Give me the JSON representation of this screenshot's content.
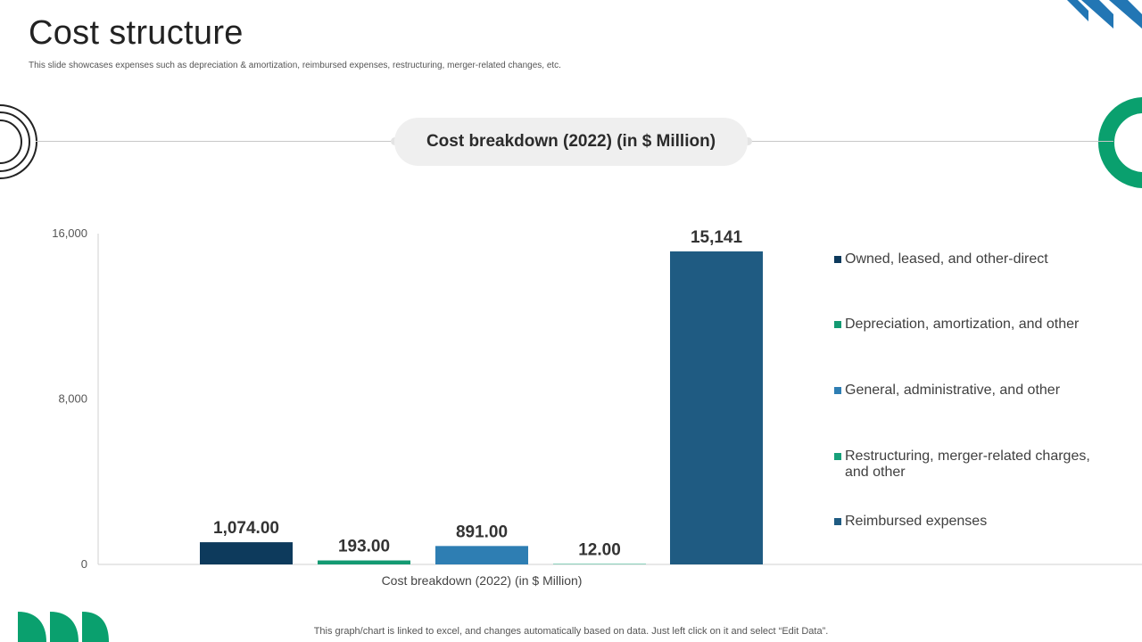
{
  "slide": {
    "title": "Cost structure",
    "subtitle": "This slide showcases expenses such as depreciation & amortization, reimbursed expenses, restructuring, merger-related changes, etc.",
    "header_pill": "Cost breakdown (2022) (in $ Million)",
    "footer_note": "This graph/chart is linked to excel,  and changes automatically based on data. Just left click on it and select “Edit Data”."
  },
  "colors": {
    "dark_navy": "#0d3a5c",
    "green": "#139a72",
    "blue": "#2e7eb3",
    "teal_green": "#17a07a",
    "steel_blue": "#1f5b82",
    "accent_green": "#0aa06e",
    "accent_blue": "#2276b4"
  },
  "chart_data": {
    "type": "bar",
    "title": "",
    "xlabel": "Cost breakdown (2022) (in $ Million)",
    "ylabel": "",
    "ylim": [
      0,
      16000
    ],
    "yticks": [
      0,
      8000,
      16000
    ],
    "ytick_labels": [
      "0",
      "8,000",
      "16,000"
    ],
    "categories": [
      "Cost breakdown (2022) (in $ Million)"
    ],
    "legend_position": "right",
    "series": [
      {
        "name": "Owned, leased, and other-direct",
        "value": 1074,
        "label": "1,074.00",
        "color": "#0d3a5c"
      },
      {
        "name": "Depreciation, amortization, and other",
        "value": 193,
        "label": "193.00",
        "color": "#139a72"
      },
      {
        "name": "General, administrative, and other",
        "value": 891,
        "label": "891.00",
        "color": "#2e7eb3"
      },
      {
        "name": "Restructuring, merger-related charges, and other",
        "value": 12,
        "label": "12.00",
        "color": "#17a07a"
      },
      {
        "name": "Reimbursed expenses",
        "value": 15141,
        "label": "15,141",
        "color": "#1f5b82"
      }
    ]
  }
}
